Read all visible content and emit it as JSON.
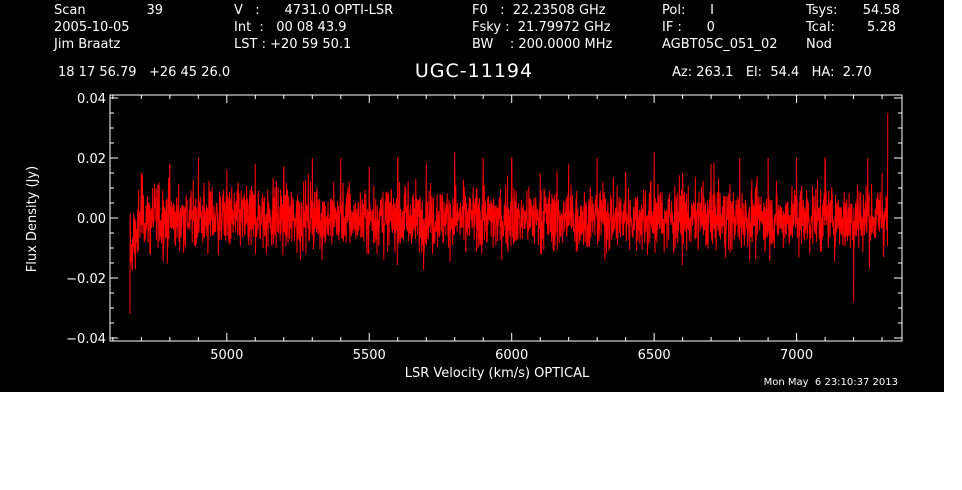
{
  "header": {
    "col1": [
      "Scan",
      "2005-10-05",
      "Jim Braatz"
    ],
    "scan_number": "39",
    "col2": [
      "V   :      4731.0 OPTI-LSR",
      "Int  :   00 08 43.9",
      "LST : +20 59 50.1"
    ],
    "col3": [
      "F0   :  22.23508 GHz",
      "Fsky :  21.79972 GHz",
      "BW    : 200.0000 MHz"
    ],
    "col4": [
      "Pol:      I",
      "IF :      0",
      "AGBT05C_051_02"
    ],
    "col5_labels": [
      "Tsys:",
      "Tcal:",
      "Nod"
    ],
    "col5_values": [
      "54.58",
      "5.28",
      ""
    ],
    "coords": "18 17 56.79   +26 45 26.0",
    "pointing": "Az: 263.1   El:  54.4   HA:  2.70",
    "timestamp": "Mon May  6 23:10:37 2013"
  },
  "colors": {
    "background": "#000000",
    "axes": "#ffffff",
    "trace": "#ff0000"
  },
  "chart_data": {
    "type": "line",
    "title": "UGC-11194",
    "xlabel": "LSR Velocity (km/s) OPTICAL",
    "ylabel": "Flux Density (Jy)",
    "xlim": [
      4590,
      7370
    ],
    "ylim": [
      -0.041,
      0.041
    ],
    "xticks": [
      5000,
      5500,
      6000,
      6500,
      7000
    ],
    "xtick_labels": [
      "5000",
      "5500",
      "6000",
      "6500",
      "7000"
    ],
    "yticks": [
      -0.04,
      -0.02,
      0.0,
      0.02,
      0.04
    ],
    "ytick_labels": [
      "−0.04",
      "−0.02",
      "0.00",
      "0.02",
      "0.04"
    ],
    "grid": false,
    "series": [
      {
        "color": "#ff0000",
        "x": [
          4660,
          4700,
          4800,
          4900,
          5000,
          5100,
          5200,
          5300,
          5400,
          5500,
          5600,
          5700,
          5800,
          5900,
          6000,
          6100,
          6200,
          6300,
          6400,
          6500,
          6600,
          6700,
          6800,
          6900,
          7000,
          7100,
          7200,
          7250,
          7300,
          7320
        ],
        "values": [
          -0.032,
          0.015,
          0.018,
          0.02,
          0.016,
          0.018,
          0.017,
          0.02,
          0.02,
          0.017,
          0.02,
          0.018,
          0.022,
          0.02,
          0.02,
          0.015,
          0.018,
          0.02,
          0.015,
          0.022,
          0.015,
          0.018,
          0.02,
          0.02,
          0.02,
          0.02,
          -0.028,
          0.02,
          0.015,
          0.035
        ],
        "noise_rms": 0.006
      }
    ]
  }
}
